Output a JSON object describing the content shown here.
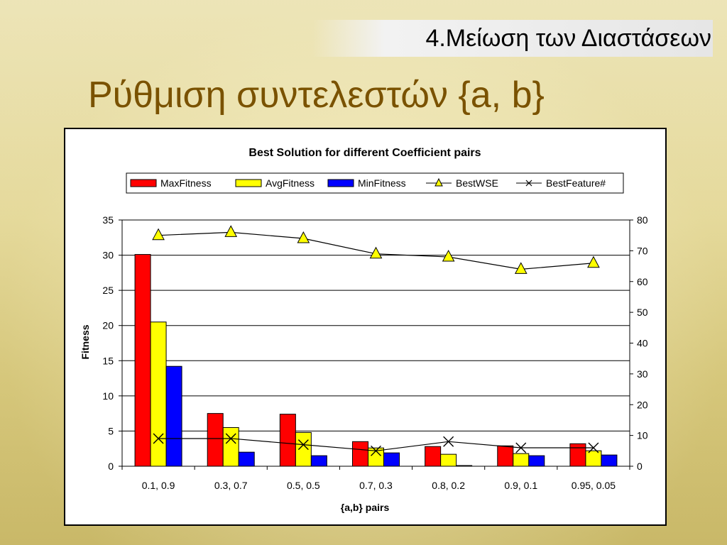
{
  "header": {
    "section_title": "4.Μείωση των Διαστάσεων",
    "slide_title": "Ρύθμιση συντελεστών {a, b}"
  },
  "colors": {
    "title": "#7a5200",
    "max": "#ff0000",
    "avg": "#ffff00",
    "min": "#0000ff"
  },
  "chart_data": {
    "type": "bar",
    "title": "Best Solution for different Coefficient pairs",
    "xlabel": "{a,b} pairs",
    "ylabel": "Fitness",
    "categories": [
      "0.1, 0.9",
      "0.3, 0.7",
      "0.5, 0.5",
      "0.7, 0.3",
      "0.8, 0.2",
      "0.9, 0.1",
      "0.95, 0.05"
    ],
    "ylim": [
      0,
      35
    ],
    "y_ticks": [
      0,
      5,
      10,
      15,
      20,
      25,
      30,
      35
    ],
    "y2lim": [
      0,
      80
    ],
    "y2_ticks": [
      0,
      10,
      20,
      30,
      40,
      50,
      60,
      70,
      80
    ],
    "legend_position": "top",
    "grid": true,
    "series": [
      {
        "name": "MaxFitness",
        "kind": "bar",
        "axis": "left",
        "color": "#ff0000",
        "values": [
          30.1,
          7.5,
          7.4,
          3.5,
          2.8,
          2.9,
          3.2
        ]
      },
      {
        "name": "AvgFitness",
        "kind": "bar",
        "axis": "left",
        "color": "#ffff00",
        "values": [
          20.5,
          5.5,
          4.8,
          2.6,
          1.7,
          1.8,
          2.2
        ]
      },
      {
        "name": "MinFitness",
        "kind": "bar",
        "axis": "left",
        "color": "#0000ff",
        "values": [
          14.2,
          2.0,
          1.5,
          1.9,
          0.1,
          1.5,
          1.6
        ]
      },
      {
        "name": "BestWSE",
        "kind": "line",
        "marker": "triangle",
        "axis": "right",
        "color": "#ffff00",
        "values": [
          75,
          76,
          74,
          69,
          68,
          64,
          66
        ]
      },
      {
        "name": "BestFeature#",
        "kind": "line",
        "marker": "x",
        "axis": "right",
        "color": "#000000",
        "values": [
          9,
          9,
          7,
          5,
          8,
          6,
          6
        ]
      }
    ]
  }
}
